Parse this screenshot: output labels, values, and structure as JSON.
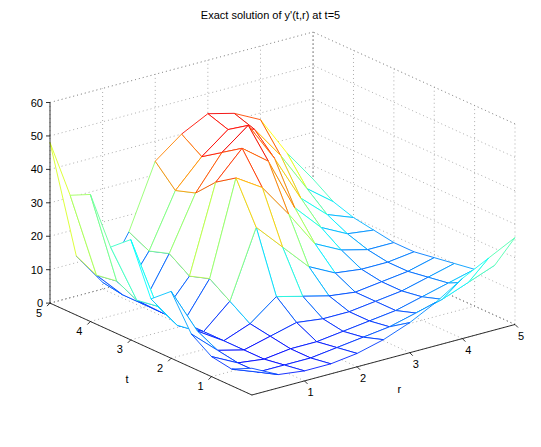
{
  "chart_data": {
    "type": "surface",
    "title": "Exact solution of y'(t,r) at t=5",
    "xlabel": "r",
    "ylabel": "t",
    "x": [
      0,
      0.5,
      1,
      1.5,
      2,
      2.5,
      3,
      3.5,
      4,
      4.5,
      5
    ],
    "y": [
      0,
      0.5,
      1,
      1.5,
      2,
      2.5,
      3,
      3.5,
      4,
      4.5,
      5
    ],
    "z": [
      [
        8,
        4,
        3,
        3,
        4,
        6,
        9,
        13,
        18,
        22,
        26
      ],
      [
        5,
        2,
        2,
        2,
        3,
        4,
        5,
        7,
        9,
        12,
        15
      ],
      [
        6,
        2,
        1,
        2,
        2,
        3,
        4,
        5,
        7,
        9,
        11
      ],
      [
        10,
        3,
        1,
        3,
        5,
        4,
        4,
        5,
        6,
        8,
        10
      ],
      [
        20,
        6,
        1,
        4,
        10,
        8,
        6,
        5,
        6,
        7,
        9
      ],
      [
        15,
        5,
        1,
        8,
        28,
        20,
        12,
        8,
        7,
        7,
        8
      ],
      [
        30,
        8,
        1,
        12,
        40,
        35,
        25,
        14,
        10,
        8,
        8
      ],
      [
        25,
        7,
        1,
        10,
        36,
        44,
        38,
        22,
        14,
        10,
        9
      ],
      [
        38,
        10,
        1,
        14,
        30,
        40,
        46,
        34,
        20,
        13,
        10
      ],
      [
        35,
        9,
        1,
        12,
        28,
        36,
        42,
        40,
        30,
        18,
        12
      ],
      [
        48,
        12,
        2,
        15,
        34,
        40,
        44,
        42,
        38,
        26,
        16
      ]
    ],
    "xlim": [
      0,
      5
    ],
    "ylim": [
      0,
      5
    ],
    "zlim": [
      0,
      60
    ],
    "xticks": [
      1,
      2,
      3,
      4,
      5
    ],
    "yticks": [
      1,
      2,
      3,
      4,
      5
    ],
    "zticks": [
      0,
      10,
      20,
      30,
      40,
      50,
      60
    ],
    "grid": true
  }
}
